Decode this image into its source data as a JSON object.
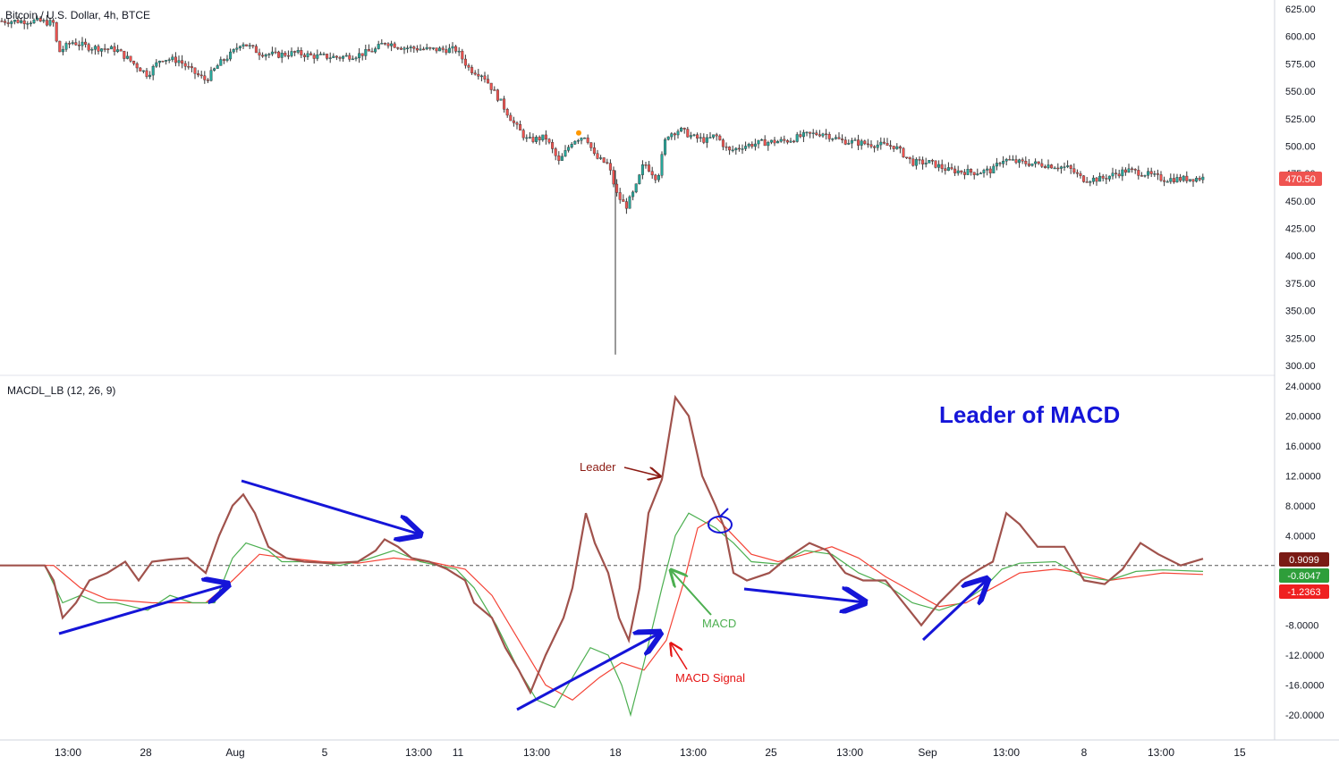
{
  "header": {
    "symbol_title": "Bitcoin / U.S. Dollar, 4h, BTCE",
    "indicator_title": "MACDL_LB (12, 26, 9)"
  },
  "annotations": {
    "main_title": "Leader of MACD",
    "leader_label": "Leader",
    "macd_label": "MACD",
    "signal_label": "MACD Signal"
  },
  "colors": {
    "up_candle": "#26a69a",
    "down_candle": "#ef5350",
    "leader_line": "#a0524c",
    "macd_line": "#4caf50",
    "signal_line": "#f44336",
    "annotation_blue": "#1515d8",
    "price_badge": "#ef5350",
    "leader_badge": "#7a1a14",
    "macd_badge": "#2e9e3a",
    "signal_badge": "#ef2020"
  },
  "price_axis": {
    "ticks": [
      "625.00",
      "600.00",
      "575.00",
      "550.00",
      "525.00",
      "500.00",
      "475.00",
      "450.00",
      "425.00",
      "400.00",
      "375.00",
      "350.00",
      "325.00",
      "300.00"
    ],
    "last_price": "470.50"
  },
  "indicator_axis": {
    "ticks": [
      "24.0000",
      "20.0000",
      "16.0000",
      "12.0000",
      "8.0000",
      "4.0000",
      "-4.0000",
      "-8.0000",
      "-12.0000",
      "-16.0000",
      "-20.0000"
    ],
    "badges": [
      "0.9099",
      "-0.8047",
      "-1.2363"
    ]
  },
  "time_axis": {
    "ticks": [
      "13:00",
      "28",
      "Aug",
      "5",
      "13:00",
      "11",
      "13:00",
      "18",
      "13:00",
      "25",
      "13:00",
      "Sep",
      "13:00",
      "8",
      "13:00",
      "15"
    ]
  },
  "chart_data": [
    {
      "type": "candlestick",
      "title": "Bitcoin / U.S. Dollar, 4h, BTCE",
      "ylim": [
        300,
        625
      ],
      "close_path": [
        [
          0,
          614
        ],
        [
          40,
          614
        ],
        [
          60,
          612
        ],
        [
          65,
          585
        ],
        [
          80,
          595
        ],
        [
          100,
          590
        ],
        [
          130,
          588
        ],
        [
          150,
          575
        ],
        [
          165,
          565
        ],
        [
          180,
          580
        ],
        [
          200,
          578
        ],
        [
          215,
          568
        ],
        [
          230,
          560
        ],
        [
          245,
          575
        ],
        [
          260,
          585
        ],
        [
          270,
          595
        ],
        [
          290,
          585
        ],
        [
          310,
          583
        ],
        [
          330,
          585
        ],
        [
          350,
          582
        ],
        [
          380,
          581
        ],
        [
          400,
          583
        ],
        [
          420,
          588
        ],
        [
          430,
          595
        ],
        [
          450,
          590
        ],
        [
          480,
          588
        ],
        [
          510,
          588
        ],
        [
          525,
          570
        ],
        [
          540,
          565
        ],
        [
          560,
          540
        ],
        [
          575,
          520
        ],
        [
          590,
          505
        ],
        [
          610,
          508
        ],
        [
          625,
          485
        ],
        [
          640,
          505
        ],
        [
          655,
          510
        ],
        [
          665,
          490
        ],
        [
          680,
          483
        ],
        [
          690,
          455
        ],
        [
          700,
          445
        ],
        [
          710,
          460
        ],
        [
          720,
          485
        ],
        [
          735,
          470
        ],
        [
          745,
          510
        ],
        [
          760,
          515
        ],
        [
          775,
          508
        ],
        [
          790,
          505
        ],
        [
          800,
          510
        ],
        [
          815,
          495
        ],
        [
          830,
          500
        ],
        [
          850,
          503
        ],
        [
          880,
          505
        ],
        [
          900,
          510
        ],
        [
          920,
          512
        ],
        [
          940,
          505
        ],
        [
          970,
          502
        ],
        [
          1000,
          500
        ],
        [
          1020,
          485
        ],
        [
          1040,
          485
        ],
        [
          1060,
          478
        ],
        [
          1090,
          476
        ],
        [
          1110,
          478
        ],
        [
          1120,
          488
        ],
        [
          1140,
          485
        ],
        [
          1170,
          483
        ],
        [
          1195,
          480
        ],
        [
          1210,
          470
        ],
        [
          1230,
          470
        ],
        [
          1260,
          478
        ],
        [
          1280,
          475
        ],
        [
          1300,
          470
        ],
        [
          1320,
          470
        ],
        [
          1345,
          471
        ]
      ],
      "wick_extremes": [
        {
          "x_index": 688,
          "low": 310,
          "high": 478
        }
      ],
      "last_price": 470.5
    },
    {
      "type": "line",
      "title": "MACDL_LB (12, 26, 9)",
      "ylim": [
        -22,
        24
      ],
      "zero_line": 0,
      "series": [
        {
          "name": "Leader",
          "points": [
            [
              0,
              0
            ],
            [
              50,
              0
            ],
            [
              60,
              -2
            ],
            [
              70,
              -7
            ],
            [
              85,
              -5
            ],
            [
              100,
              -2
            ],
            [
              120,
              -1
            ],
            [
              140,
              0.5
            ],
            [
              155,
              -2
            ],
            [
              170,
              0.5
            ],
            [
              190,
              0.8
            ],
            [
              210,
              1
            ],
            [
              230,
              -1
            ],
            [
              245,
              4
            ],
            [
              260,
              8
            ],
            [
              272,
              9.5
            ],
            [
              285,
              7
            ],
            [
              300,
              2.5
            ],
            [
              320,
              1
            ],
            [
              340,
              0.5
            ],
            [
              370,
              0.3
            ],
            [
              400,
              0.5
            ],
            [
              420,
              2
            ],
            [
              430,
              3.5
            ],
            [
              445,
              2.5
            ],
            [
              460,
              1
            ],
            [
              480,
              0.5
            ],
            [
              500,
              -0.5
            ],
            [
              520,
              -2
            ],
            [
              530,
              -5
            ],
            [
              550,
              -7
            ],
            [
              565,
              -11
            ],
            [
              580,
              -14
            ],
            [
              593,
              -17
            ],
            [
              610,
              -12
            ],
            [
              630,
              -7
            ],
            [
              640,
              -3
            ],
            [
              655,
              7
            ],
            [
              665,
              3
            ],
            [
              680,
              -1
            ],
            [
              692,
              -7
            ],
            [
              703,
              -10
            ],
            [
              715,
              -3
            ],
            [
              725,
              7
            ],
            [
              740,
              11.5
            ],
            [
              755,
              22.5
            ],
            [
              770,
              20
            ],
            [
              785,
              12
            ],
            [
              800,
              8
            ],
            [
              810,
              5
            ],
            [
              820,
              -1
            ],
            [
              835,
              -2
            ],
            [
              860,
              -1
            ],
            [
              880,
              1
            ],
            [
              905,
              3
            ],
            [
              925,
              2
            ],
            [
              945,
              -1
            ],
            [
              965,
              -2
            ],
            [
              990,
              -2
            ],
            [
              1010,
              -5
            ],
            [
              1030,
              -8
            ],
            [
              1050,
              -5
            ],
            [
              1075,
              -2
            ],
            [
              1095,
              -0.5
            ],
            [
              1110,
              0.5
            ],
            [
              1125,
              7
            ],
            [
              1140,
              5.5
            ],
            [
              1160,
              2.5
            ],
            [
              1190,
              2.5
            ],
            [
              1212,
              -2
            ],
            [
              1235,
              -2.5
            ],
            [
              1255,
              -0.5
            ],
            [
              1275,
              3
            ],
            [
              1295,
              1.5
            ],
            [
              1320,
              0
            ],
            [
              1345,
              0.9
            ]
          ]
        },
        {
          "name": "MACD",
          "points": [
            [
              0,
              0
            ],
            [
              50,
              0
            ],
            [
              70,
              -5
            ],
            [
              90,
              -4
            ],
            [
              110,
              -5
            ],
            [
              130,
              -5
            ],
            [
              165,
              -6
            ],
            [
              190,
              -4
            ],
            [
              215,
              -5
            ],
            [
              240,
              -5
            ],
            [
              260,
              1
            ],
            [
              275,
              3
            ],
            [
              300,
              2
            ],
            [
              315,
              0.5
            ],
            [
              350,
              0.5
            ],
            [
              380,
              0
            ],
            [
              410,
              0.8
            ],
            [
              440,
              2
            ],
            [
              470,
              0.5
            ],
            [
              510,
              -0.5
            ],
            [
              530,
              -3
            ],
            [
              555,
              -8
            ],
            [
              580,
              -14
            ],
            [
              600,
              -18
            ],
            [
              620,
              -19
            ],
            [
              640,
              -15
            ],
            [
              660,
              -11
            ],
            [
              680,
              -12
            ],
            [
              695,
              -16
            ],
            [
              705,
              -20
            ],
            [
              720,
              -13
            ],
            [
              740,
              -3
            ],
            [
              755,
              4
            ],
            [
              770,
              7
            ],
            [
              785,
              6
            ],
            [
              800,
              5
            ],
            [
              820,
              3
            ],
            [
              840,
              0.5
            ],
            [
              870,
              0.2
            ],
            [
              900,
              2
            ],
            [
              930,
              1.5
            ],
            [
              960,
              -1
            ],
            [
              990,
              -2.5
            ],
            [
              1020,
              -5
            ],
            [
              1050,
              -6
            ],
            [
              1075,
              -5
            ],
            [
              1100,
              -3
            ],
            [
              1120,
              -0.5
            ],
            [
              1140,
              0.3
            ],
            [
              1180,
              0.5
            ],
            [
              1210,
              -1.5
            ],
            [
              1240,
              -2
            ],
            [
              1270,
              -0.8
            ],
            [
              1300,
              -0.6
            ],
            [
              1345,
              -0.8
            ]
          ]
        },
        {
          "name": "MACD Signal",
          "points": [
            [
              0,
              0
            ],
            [
              60,
              0
            ],
            [
              90,
              -3
            ],
            [
              120,
              -4.5
            ],
            [
              170,
              -5
            ],
            [
              230,
              -5
            ],
            [
              260,
              -2
            ],
            [
              290,
              1.5
            ],
            [
              320,
              1
            ],
            [
              360,
              0.5
            ],
            [
              400,
              0.3
            ],
            [
              440,
              1
            ],
            [
              480,
              0.5
            ],
            [
              520,
              -0.5
            ],
            [
              550,
              -4
            ],
            [
              580,
              -10
            ],
            [
              610,
              -16
            ],
            [
              640,
              -18
            ],
            [
              670,
              -15
            ],
            [
              695,
              -13
            ],
            [
              720,
              -14
            ],
            [
              745,
              -10
            ],
            [
              765,
              -2
            ],
            [
              780,
              5
            ],
            [
              800,
              6.5
            ],
            [
              820,
              4
            ],
            [
              840,
              1.5
            ],
            [
              870,
              0.5
            ],
            [
              900,
              1.5
            ],
            [
              930,
              2.5
            ],
            [
              960,
              1
            ],
            [
              990,
              -1.5
            ],
            [
              1020,
              -3.5
            ],
            [
              1050,
              -5.5
            ],
            [
              1080,
              -5
            ],
            [
              1110,
              -3
            ],
            [
              1140,
              -1
            ],
            [
              1180,
              -0.5
            ],
            [
              1210,
              -1
            ],
            [
              1240,
              -2
            ],
            [
              1270,
              -1.5
            ],
            [
              1300,
              -1
            ],
            [
              1345,
              -1.2
            ]
          ]
        }
      ],
      "badges": [
        0.9099,
        -0.8047,
        -1.2363
      ]
    }
  ]
}
